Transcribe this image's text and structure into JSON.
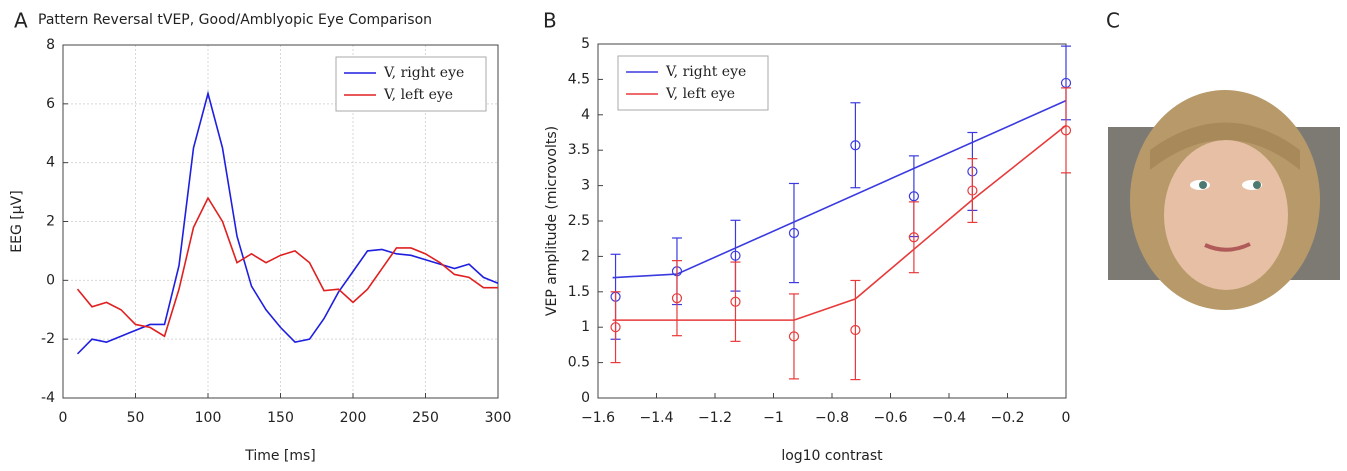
{
  "chart_data": [
    {
      "type": "line",
      "panel": "A",
      "title": "Pattern Reversal tVEP, Good/Amblyopic Eye Comparison",
      "x_label": "Time [ms]",
      "y_label": "EEG [μV]",
      "xlim": [
        0,
        300
      ],
      "xticks": [
        0,
        50,
        100,
        150,
        200,
        250,
        300
      ],
      "ylim": [
        -4,
        8
      ],
      "yticks": [
        -4,
        -2,
        0,
        2,
        4,
        6,
        8
      ],
      "grid": true,
      "legend": "top-right",
      "x": [
        10,
        20,
        30,
        40,
        50,
        60,
        70,
        80,
        90,
        100,
        110,
        120,
        130,
        140,
        150,
        160,
        170,
        180,
        190,
        200,
        210,
        220,
        230,
        240,
        250,
        260,
        270,
        280,
        290,
        300
      ],
      "series": [
        {
          "name": "V, right eye",
          "color": "#1f1fe0",
          "values": [
            -2.5,
            -2.0,
            -2.1,
            -1.9,
            -1.7,
            -1.5,
            -1.5,
            0.5,
            4.5,
            6.35,
            4.5,
            1.5,
            -0.2,
            -1.0,
            -1.6,
            -2.1,
            -2.0,
            -1.3,
            -0.4,
            0.3,
            1.0,
            1.05,
            0.9,
            0.85,
            0.7,
            0.55,
            0.4,
            0.55,
            0.1,
            -0.1
          ]
        },
        {
          "name": "V, left eye",
          "color": "#e02020",
          "values": [
            -0.3,
            -0.9,
            -0.75,
            -1.0,
            -1.5,
            -1.6,
            -1.9,
            -0.3,
            1.8,
            2.8,
            2.0,
            0.6,
            0.9,
            0.6,
            0.85,
            1.0,
            0.6,
            -0.35,
            -0.3,
            -0.75,
            -0.3,
            0.4,
            1.1,
            1.1,
            0.9,
            0.6,
            0.2,
            0.1,
            -0.25,
            -0.25
          ]
        }
      ]
    },
    {
      "type": "errorbar",
      "panel": "B",
      "x_label": "log10 contrast",
      "y_label": "VEP amplitude (microvolts)",
      "xlim": [
        -1.6,
        0
      ],
      "xticks": [
        {
          "value": -1.6,
          "label": "−1.6"
        },
        {
          "value": -1.4,
          "label": "−1.4"
        },
        {
          "value": -1.2,
          "label": "−1.2"
        },
        {
          "value": -1,
          "label": "−1"
        },
        {
          "value": -0.8,
          "label": "−0.8"
        },
        {
          "value": -0.6,
          "label": "−0.6"
        },
        {
          "value": -0.4,
          "label": "−0.4"
        },
        {
          "value": -0.2,
          "label": "−0.2"
        },
        0
      ],
      "ylim": [
        0,
        5
      ],
      "yticks": [
        0,
        0.5,
        1,
        1.5,
        2,
        2.5,
        3,
        3.5,
        4,
        4.5,
        5
      ],
      "grid": false,
      "legend": "top-left",
      "x": [
        -1.54,
        -1.33,
        -1.13,
        -0.93,
        -0.72,
        -0.52,
        -0.32,
        0
      ],
      "series": [
        {
          "name": "V, right eye",
          "color": "#3a3ae0",
          "values": [
            1.43,
            1.79,
            2.01,
            2.33,
            3.57,
            2.85,
            3.2,
            4.45
          ],
          "errors": [
            0.6,
            0.47,
            0.5,
            0.7,
            0.6,
            0.57,
            0.55,
            0.52
          ],
          "fit_x": [
            -1.55,
            -1.33,
            0
          ],
          "fit_values": [
            1.7,
            1.75,
            4.2
          ]
        },
        {
          "name": "V, left eye",
          "color": "#e83a3a",
          "values": [
            1.0,
            1.41,
            1.36,
            0.87,
            0.96,
            2.27,
            2.93,
            3.78
          ],
          "errors": [
            0.5,
            0.53,
            0.56,
            0.6,
            0.7,
            0.5,
            0.45,
            0.6
          ],
          "fit_x": [
            -1.55,
            -0.93,
            -0.72,
            -0.52,
            -0.32,
            0
          ],
          "fit_values": [
            1.1,
            1.1,
            1.4,
            2.1,
            2.8,
            3.85
          ]
        }
      ]
    }
  ],
  "image_panel": {
    "label": "C"
  }
}
